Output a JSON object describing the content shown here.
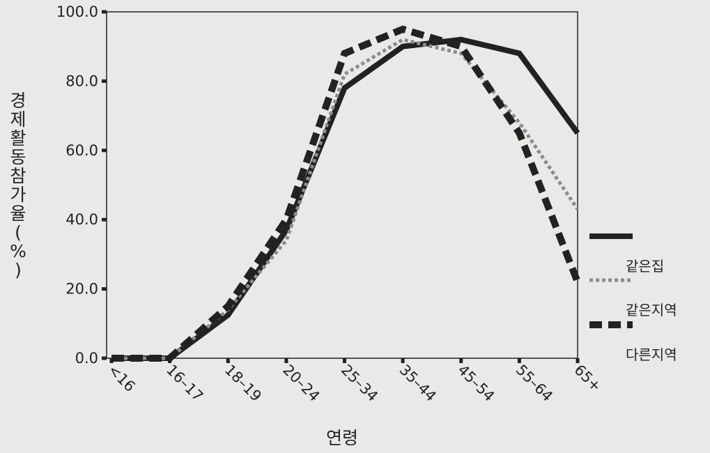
{
  "chart_data": {
    "type": "line",
    "xlabel": "연령",
    "ylabel": "경제활동참가율(%)",
    "categories": [
      "<16",
      "16–17",
      "18–19",
      "20–24",
      "25–34",
      "35–44",
      "45–54",
      "55–64",
      "65+"
    ],
    "ylim": [
      0,
      100
    ],
    "y_ticks": [
      "0.0",
      "20.0",
      "40.0",
      "60.0",
      "80.0",
      "100.0"
    ],
    "grid": false,
    "legend_position": "right",
    "series": [
      {
        "name": "같은집",
        "style": "solid",
        "color": "#222222",
        "values": [
          0.0,
          0.0,
          12.5,
          37.0,
          78.0,
          90.0,
          92.0,
          88.0,
          65.0
        ]
      },
      {
        "name": "같은지역",
        "style": "dotted",
        "color": "#8c8c8c",
        "values": [
          0.0,
          0.0,
          14.0,
          34.0,
          82.0,
          92.0,
          88.0,
          68.0,
          43.0
        ]
      },
      {
        "name": "다른지역",
        "style": "dashed",
        "color": "#222222",
        "values": [
          0.0,
          0.0,
          15.0,
          40.0,
          88.0,
          95.0,
          90.0,
          65.0,
          22.0
        ]
      }
    ]
  }
}
